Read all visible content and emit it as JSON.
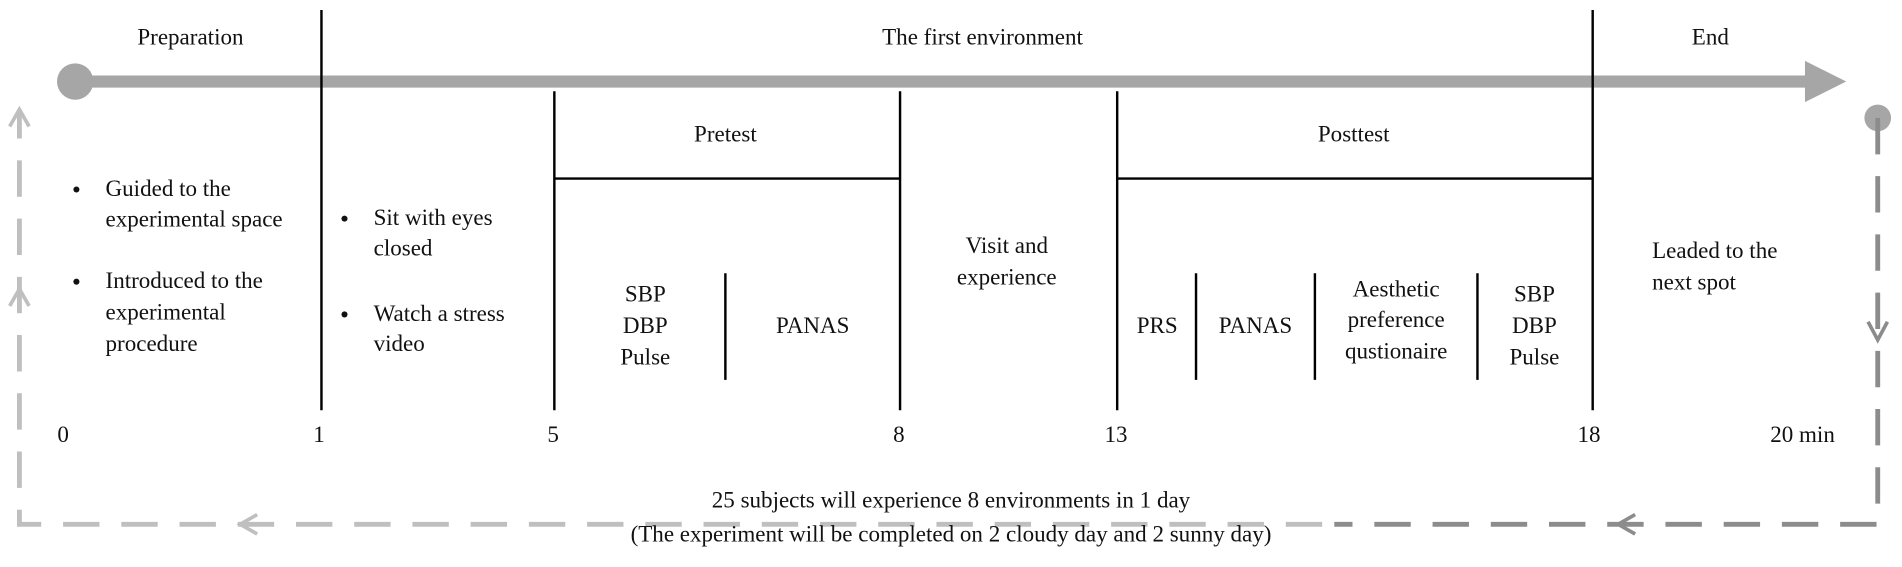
{
  "phases": {
    "preparation": "Preparation",
    "environment": "The first environment",
    "end": "End"
  },
  "preparation_steps": [
    [
      "Guided to the",
      "experimental space"
    ],
    [
      "Introduced to the",
      "experimental",
      "procedure"
    ]
  ],
  "stress_steps": [
    [
      "Sit with eyes",
      "closed"
    ],
    [
      "Watch a stress",
      "video"
    ]
  ],
  "pretest": {
    "title": "Pretest",
    "measures": [
      "SBP",
      "DBP",
      "Pulse"
    ],
    "scale": "PANAS"
  },
  "visit": [
    "Visit and",
    "experience"
  ],
  "posttest": {
    "title": "Posttest",
    "prs": "PRS",
    "panas": "PANAS",
    "aesthetic": [
      "Aesthetic",
      "preference",
      "qustionaire"
    ],
    "measures": [
      "SBP",
      "DBP",
      "Pulse"
    ]
  },
  "end_step": [
    "Leaded to the",
    "next spot"
  ],
  "timeline": [
    "0",
    "1",
    "5",
    "8",
    "13",
    "18",
    "20 min"
  ],
  "footer": [
    "25 subjects will experience 8 environments in 1 day",
    "(The experiment will be completed on 2 cloudy day and 2 sunny day)"
  ]
}
